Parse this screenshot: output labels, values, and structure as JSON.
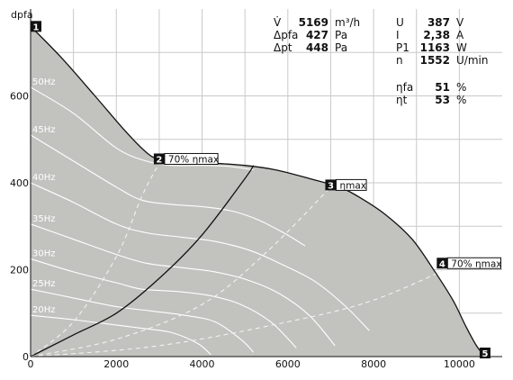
{
  "chart_data": {
    "type": "line",
    "xlabel": "",
    "ylabel": "dpfa",
    "xlim": [
      0,
      11000
    ],
    "ylim": [
      0,
      800
    ],
    "x_ticks": [
      "0",
      "2000",
      "4000",
      "6000",
      "8000",
      "10000"
    ],
    "y_ticks": [
      "0",
      "200",
      "400",
      "600"
    ],
    "grid": true,
    "colors": {
      "area": "#c2c3bf",
      "curve": "#111111",
      "speed": "#ffffff"
    },
    "envelope": {
      "x": [
        0,
        700,
        1500,
        2200,
        2700,
        3000,
        3600,
        4300,
        5000,
        5700,
        6500,
        7200,
        7700,
        8300,
        8900,
        9400,
        9850,
        10150,
        10400,
        10600
      ],
      "y": [
        760,
        690,
        600,
        520,
        470,
        455,
        450,
        445,
        440,
        430,
        410,
        390,
        365,
        325,
        270,
        200,
        130,
        70,
        25,
        0
      ]
    },
    "speed_curves": [
      {
        "name": "50Hz",
        "x": [
          0,
          1000,
          2000,
          2700,
          3300,
          4000,
          4600,
          5200
        ],
        "y": [
          620,
          560,
          480,
          450,
          440,
          440,
          438,
          430
        ]
      },
      {
        "name": "45Hz",
        "x": [
          0,
          1000,
          2000,
          2600,
          3300,
          4000,
          4700,
          5300,
          5900,
          6400
        ],
        "y": [
          510,
          450,
          390,
          360,
          350,
          345,
          335,
          315,
          285,
          255
        ]
      },
      {
        "name": "40Hz",
        "x": [
          0,
          1000,
          2000,
          2700,
          3500,
          4300,
          5100,
          5800,
          6600,
          7300,
          7900
        ],
        "y": [
          400,
          355,
          305,
          285,
          275,
          265,
          245,
          215,
          175,
          120,
          60
        ]
      },
      {
        "name": "35Hz",
        "x": [
          0,
          1000,
          2000,
          2700,
          3500,
          4300,
          5100,
          5800,
          6500,
          7100
        ],
        "y": [
          305,
          270,
          235,
          215,
          205,
          195,
          175,
          145,
          95,
          25
        ]
      },
      {
        "name": "30Hz",
        "x": [
          0,
          1000,
          2000,
          2600,
          3400,
          4200,
          4900,
          5600,
          6200
        ],
        "y": [
          225,
          195,
          170,
          155,
          150,
          140,
          120,
          80,
          20
        ]
      },
      {
        "name": "25Hz",
        "x": [
          0,
          1000,
          2000,
          2800,
          3600,
          4300,
          4900,
          5200
        ],
        "y": [
          155,
          135,
          115,
          105,
          95,
          80,
          40,
          10
        ]
      },
      {
        "name": "20Hz",
        "x": [
          0,
          1000,
          1800,
          2600,
          3300,
          3900,
          4200
        ],
        "y": [
          95,
          85,
          75,
          65,
          55,
          30,
          5
        ]
      }
    ],
    "efficiency_lines": [
      {
        "name": "70% ηmax (left)",
        "style": "dashed",
        "x": [
          0,
          1000,
          2000,
          2600,
          3000
        ],
        "y": [
          0,
          80,
          230,
          370,
          445
        ]
      },
      {
        "name": "ηmax",
        "style": "solid",
        "x": [
          0,
          1000,
          2000,
          3000,
          4000,
          5000,
          5200
        ],
        "y": [
          0,
          50,
          100,
          180,
          280,
          410,
          440
        ]
      },
      {
        "name": "ηmax (dashed)",
        "style": "dashed",
        "x": [
          0,
          2000,
          4000,
          5500,
          7000
        ],
        "y": [
          0,
          40,
          120,
          240,
          390
        ]
      },
      {
        "name": "70% ηmax (right)",
        "style": "dashed",
        "x": [
          0,
          3000,
          6000,
          8000,
          10000
        ],
        "y": [
          0,
          25,
          80,
          130,
          215
        ]
      }
    ],
    "operating_points": [
      {
        "number": "1",
        "label": "",
        "x": 0,
        "y": 760
      },
      {
        "number": "2",
        "label": "70% ηmax",
        "x": 3000,
        "y": 455
      },
      {
        "number": "3",
        "label": "ηmax",
        "x": 7000,
        "y": 395
      },
      {
        "number": "4",
        "label": "70% ηmax",
        "x": 9600,
        "y": 215
      },
      {
        "number": "5",
        "label": "",
        "x": 10600,
        "y": 0
      }
    ],
    "annotations": {
      "left": [
        {
          "symbol": "V̇",
          "value": "5169",
          "unit": "m³/h"
        },
        {
          "symbol": "Δpfa",
          "value": "427",
          "unit": "Pa"
        },
        {
          "symbol": "Δpt",
          "value": "448",
          "unit": "Pa"
        }
      ],
      "right": [
        {
          "symbol": "U",
          "value": "387",
          "unit": "V"
        },
        {
          "symbol": "I",
          "value": "2,38",
          "unit": "A"
        },
        {
          "symbol": "P1",
          "value": "1163",
          "unit": "W"
        },
        {
          "symbol": "n",
          "value": "1552",
          "unit": "U/min"
        }
      ],
      "efficiency": [
        {
          "symbol": "ηfa",
          "value": "51",
          "unit": "%"
        },
        {
          "symbol": "ηt",
          "value": "53",
          "unit": "%"
        }
      ]
    }
  }
}
